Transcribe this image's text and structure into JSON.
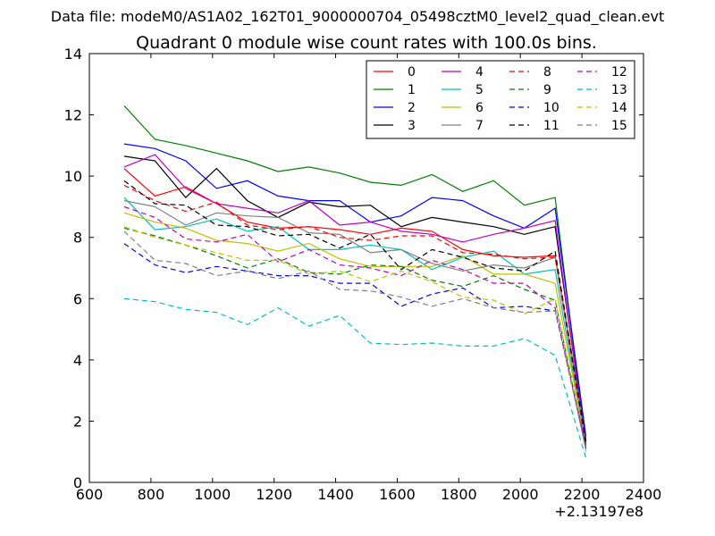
{
  "suptitle": "Data file: modeM0/AS1A02_162T01_9000000704_05498cztM0_level2_quad_clean.evt",
  "chart_data": {
    "type": "line",
    "title": "Quadrant 0 module wise count rates with 100.0s bins.",
    "xlabel": "",
    "ylabel": "",
    "x_offset_label": "+2.13197e8",
    "xlim": [
      600,
      2400
    ],
    "ylim": [
      0,
      14
    ],
    "xticks": [
      600,
      800,
      1000,
      1200,
      1400,
      1600,
      1800,
      2000,
      2200,
      2400
    ],
    "yticks": [
      0,
      2,
      4,
      6,
      8,
      10,
      12,
      14
    ],
    "grid": false,
    "legend_position": "top-right",
    "legend_columns": 4,
    "x": [
      713,
      813,
      913,
      1013,
      1113,
      1213,
      1313,
      1413,
      1513,
      1613,
      1713,
      1813,
      1913,
      2013,
      2113,
      2213
    ],
    "series": [
      {
        "name": "0",
        "color": "#ff0000",
        "dash": "solid",
        "values": [
          10.25,
          9.35,
          9.65,
          9.1,
          8.5,
          8.3,
          8.35,
          8.25,
          8.1,
          8.3,
          8.2,
          7.6,
          7.4,
          7.35,
          7.4,
          1.4
        ]
      },
      {
        "name": "1",
        "color": "#008000",
        "dash": "solid",
        "values": [
          12.3,
          11.2,
          11.0,
          10.75,
          10.5,
          10.15,
          10.3,
          10.1,
          9.8,
          9.7,
          10.05,
          9.5,
          9.85,
          9.05,
          9.3,
          1.1
        ]
      },
      {
        "name": "2",
        "color": "#0000ff",
        "dash": "solid",
        "values": [
          11.05,
          10.9,
          10.5,
          9.6,
          9.85,
          9.35,
          9.2,
          9.2,
          8.5,
          8.7,
          9.3,
          9.2,
          8.7,
          8.3,
          8.95,
          1.5
        ]
      },
      {
        "name": "3",
        "color": "#000000",
        "dash": "solid",
        "values": [
          10.65,
          10.5,
          9.3,
          10.25,
          9.2,
          8.65,
          9.15,
          9.0,
          9.05,
          8.35,
          8.65,
          8.5,
          8.35,
          8.1,
          8.35,
          1.3
        ]
      },
      {
        "name": "4",
        "color": "#bf00bf",
        "dash": "solid",
        "values": [
          10.3,
          10.7,
          9.6,
          9.1,
          8.95,
          8.8,
          9.2,
          8.4,
          8.5,
          8.2,
          8.1,
          7.85,
          8.1,
          8.3,
          8.55,
          1.2
        ]
      },
      {
        "name": "5",
        "color": "#00bfbf",
        "dash": "solid",
        "values": [
          9.3,
          8.25,
          8.35,
          8.6,
          8.2,
          8.35,
          7.6,
          7.6,
          7.75,
          7.6,
          6.95,
          7.35,
          7.55,
          6.8,
          6.95,
          1.15
        ]
      },
      {
        "name": "6",
        "color": "#bfbf00",
        "dash": "solid",
        "values": [
          8.8,
          8.5,
          8.3,
          7.9,
          7.8,
          7.55,
          7.8,
          7.3,
          7.05,
          7.05,
          7.05,
          7.4,
          6.8,
          6.8,
          6.5,
          1.2
        ]
      },
      {
        "name": "7",
        "color": "#808080",
        "dash": "solid",
        "values": [
          9.2,
          9.0,
          8.4,
          8.8,
          8.7,
          8.65,
          8.15,
          8.1,
          7.5,
          7.6,
          7.15,
          6.9,
          7.1,
          7.0,
          7.35,
          1.3
        ]
      },
      {
        "name": "8",
        "color": "#ff0000",
        "dash": "dashed",
        "values": [
          9.7,
          9.2,
          8.85,
          9.15,
          8.4,
          8.25,
          8.35,
          8.0,
          7.9,
          8.05,
          8.05,
          7.5,
          7.45,
          7.3,
          7.35,
          1.2
        ]
      },
      {
        "name": "9",
        "color": "#008000",
        "dash": "dashed",
        "values": [
          8.3,
          8.05,
          7.75,
          7.4,
          7.0,
          7.3,
          6.85,
          6.8,
          7.1,
          7.05,
          6.6,
          6.4,
          6.75,
          6.3,
          5.95,
          1.1
        ]
      },
      {
        "name": "10",
        "color": "#0000ff",
        "dash": "dashed",
        "values": [
          7.8,
          7.1,
          6.85,
          7.05,
          6.9,
          6.75,
          6.75,
          6.5,
          6.5,
          5.75,
          6.15,
          6.35,
          5.7,
          5.75,
          5.6,
          1.2
        ]
      },
      {
        "name": "11",
        "color": "#000000",
        "dash": "dashed",
        "values": [
          9.85,
          9.1,
          9.05,
          8.4,
          8.35,
          8.05,
          8.1,
          7.65,
          8.1,
          6.95,
          7.6,
          7.35,
          7.0,
          6.9,
          7.55,
          1.3
        ]
      },
      {
        "name": "12",
        "color": "#bf00bf",
        "dash": "dashed",
        "values": [
          9.0,
          8.65,
          7.95,
          7.85,
          8.1,
          7.2,
          7.6,
          7.1,
          7.0,
          6.75,
          7.25,
          6.95,
          6.5,
          6.5,
          5.7,
          1.1
        ]
      },
      {
        "name": "13",
        "color": "#00bfbf",
        "dash": "dashed",
        "values": [
          6.0,
          5.9,
          5.65,
          5.55,
          5.15,
          5.7,
          5.1,
          5.45,
          4.55,
          4.5,
          4.55,
          4.45,
          4.45,
          4.7,
          4.15,
          0.8
        ]
      },
      {
        "name": "14",
        "color": "#bfbf00",
        "dash": "dashed",
        "values": [
          8.35,
          8.0,
          7.75,
          7.5,
          7.25,
          7.25,
          6.8,
          6.9,
          6.55,
          6.9,
          6.55,
          6.05,
          5.95,
          5.5,
          6.0,
          1.0
        ]
      },
      {
        "name": "15",
        "color": "#808080",
        "dash": "dashed",
        "values": [
          8.2,
          7.25,
          7.15,
          6.75,
          6.9,
          6.65,
          6.9,
          6.3,
          6.25,
          6.05,
          5.75,
          6.0,
          5.7,
          5.55,
          5.6,
          1.1
        ]
      }
    ]
  }
}
